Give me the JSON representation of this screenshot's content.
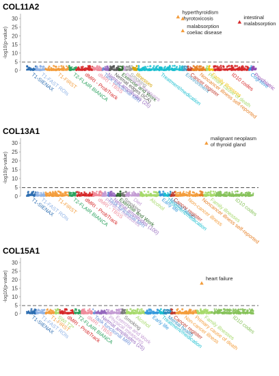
{
  "chart_data": [
    {
      "type": "scatter",
      "title": "COL11A2",
      "ylabel": "-log10(p-value)",
      "ylim": [
        0,
        32
      ],
      "yticks": [
        0,
        5,
        10,
        15,
        20,
        25,
        30
      ],
      "threshold": 4.8,
      "categories": [
        {
          "label": "T1-SIENAX",
          "color": "#2b6cb0",
          "span": [
            0.02,
            0.06
          ]
        },
        {
          "label": "T1-FAST ROIs",
          "color": "#8fb3e6",
          "span": [
            0.06,
            0.1
          ]
        },
        {
          "label": "T1-FIRST",
          "color": "#f39c3b",
          "span": [
            0.1,
            0.2
          ]
        },
        {
          "label": "T2-FLAIR BIANCA",
          "color": "#2ca25f",
          "span": [
            0.2,
            0.23
          ]
        },
        {
          "label": "dMRI - ProbTrack",
          "color": "#d62728",
          "span": [
            0.23,
            0.3
          ]
        },
        {
          "label": "dMRI - TBSS",
          "color": "#ef8a9a",
          "span": [
            0.3,
            0.34
          ]
        },
        {
          "label": "Task functional MRI",
          "color": "#6a8dd6",
          "span": [
            0.34,
            0.35
          ]
        },
        {
          "label": "Netmat amplitudes (25)",
          "color": "#9467bd",
          "span": [
            0.35,
            0.37
          ]
        },
        {
          "label": "Netmat edges (ICA)",
          "color": "#555555",
          "span": [
            0.37,
            0.41
          ]
        },
        {
          "label": "Exercise and Work",
          "color": "#2d6a2d",
          "span": [
            0.41,
            0.43
          ]
        },
        {
          "label": "Physical measures",
          "color": "#c39bd3",
          "span": [
            0.43,
            0.44
          ]
        },
        {
          "label": "Smoking",
          "color": "#999999",
          "span": [
            0.44,
            0.47
          ]
        },
        {
          "label": "Illnesses",
          "color": "#d4a300",
          "span": [
            0.47,
            0.49
          ]
        },
        {
          "label": "Treatment/medication",
          "color": "#17becf",
          "span": [
            0.49,
            0.68
          ]
        },
        {
          "label": "Environment",
          "color": "#4aa0c8",
          "span": [
            0.68,
            0.7
          ]
        },
        {
          "label": "Cancer register",
          "color": "#c0392b",
          "span": [
            0.7,
            0.72
          ]
        },
        {
          "label": "Noncancer illness self-reported",
          "color": "#e67e22",
          "span": [
            0.72,
            0.78
          ]
        },
        {
          "label": "Primary cause of death",
          "color": "#a6d96a",
          "span": [
            0.78,
            0.79
          ]
        },
        {
          "label": "Family illnesses",
          "color": "#f1c40f",
          "span": [
            0.79,
            0.81
          ]
        },
        {
          "label": "ID10 codes",
          "color": "#d62728",
          "span": [
            0.81,
            0.96
          ]
        },
        {
          "label": "Cognitive",
          "color": "#3498db",
          "span": [
            0.96,
            0.97
          ]
        },
        {
          "label": "Psychiatric",
          "color": "#8e44ad",
          "span": [
            0.97,
            0.99
          ]
        }
      ],
      "highlights": [
        {
          "x": 0.66,
          "y": 31,
          "color": "#f39c3b",
          "label": "hyperthyroidism\nthyrotoxicosis"
        },
        {
          "x": 0.68,
          "y": 30,
          "color": "#f39c3b",
          "label": ""
        },
        {
          "x": 0.68,
          "y": 23,
          "color": "#f39c3b",
          "label": "malabsorption\ncoeliac disease"
        },
        {
          "x": 0.92,
          "y": 28,
          "color": "#d62728",
          "label": "intestinal\nmalabsorption"
        }
      ]
    },
    {
      "type": "scatter",
      "title": "COL13A1",
      "ylabel": "-log10(p-value)",
      "ylim": [
        0,
        32
      ],
      "yticks": [
        0,
        5,
        10,
        15,
        20,
        25,
        30
      ],
      "threshold": 4.8,
      "categories": [
        {
          "label": "T1-SIENAX",
          "color": "#2b6cb0",
          "span": [
            0.02,
            0.06
          ]
        },
        {
          "label": "T1-FAST ROIs",
          "color": "#8fb3e6",
          "span": [
            0.06,
            0.1
          ]
        },
        {
          "label": "T1-FIRST",
          "color": "#f39c3b",
          "span": [
            0.1,
            0.2
          ]
        },
        {
          "label": "T2-FLAIR BIANCA",
          "color": "#2ca25f",
          "span": [
            0.2,
            0.23
          ]
        },
        {
          "label": "dMRI - ProbTrack",
          "color": "#d62728",
          "span": [
            0.23,
            0.3
          ]
        },
        {
          "label": "dMRI - TBSS",
          "color": "#ef8a9a",
          "span": [
            0.3,
            0.34
          ]
        },
        {
          "label": "Physical measures",
          "color": "#c39bd3",
          "span": [
            0.34,
            0.36
          ]
        },
        {
          "label": "Task functional MRI",
          "color": "#6a8dd6",
          "span": [
            0.36,
            0.37
          ]
        },
        {
          "label": "Netmat amplitudes (100)",
          "color": "#9467bd",
          "span": [
            0.37,
            0.4
          ]
        },
        {
          "label": "Exercise and Work",
          "color": "#2d6a2d",
          "span": [
            0.4,
            0.42
          ]
        },
        {
          "label": "Smoking",
          "color": "#777777",
          "span": [
            0.42,
            0.44
          ]
        },
        {
          "label": "Diet",
          "color": "#c39bd3",
          "span": [
            0.44,
            0.5
          ]
        },
        {
          "label": "Alcohol",
          "color": "#a6d96a",
          "span": [
            0.5,
            0.58
          ]
        },
        {
          "label": "Early life",
          "color": "#3498db",
          "span": [
            0.58,
            0.6
          ]
        },
        {
          "label": "Treatment/medication",
          "color": "#17becf",
          "span": [
            0.6,
            0.62
          ]
        },
        {
          "label": "Mental health",
          "color": "#2b8cbe",
          "span": [
            0.62,
            0.63
          ]
        },
        {
          "label": "Cancer register",
          "color": "#c0392b",
          "span": [
            0.63,
            0.65
          ]
        },
        {
          "label": "Non-cancer illness",
          "color": "#f39c3b",
          "span": [
            0.65,
            0.75
          ]
        },
        {
          "label": "Noncancer illness self-reported",
          "color": "#e67e22",
          "span": [
            0.75,
            0.77
          ]
        },
        {
          "label": "Family illnesses",
          "color": "#a6d96a",
          "span": [
            0.77,
            0.82
          ]
        },
        {
          "label": "ID10 codes",
          "color": "#86c25a",
          "span": [
            0.82,
            0.98
          ]
        }
      ],
      "highlights": [
        {
          "x": 0.78,
          "y": 30,
          "color": "#f39c3b",
          "label": "malignant neoplasm\nof thyroid gland"
        }
      ]
    },
    {
      "type": "scatter",
      "title": "COL15A1",
      "ylabel": "-log10(p-value)",
      "ylim": [
        0,
        32
      ],
      "yticks": [
        0,
        5,
        10,
        15,
        20,
        25,
        30
      ],
      "threshold": 4.8,
      "categories": [
        {
          "label": "T1-SIENAX",
          "color": "#2b6cb0",
          "span": [
            0.02,
            0.06
          ]
        },
        {
          "label": "T1-FAST ROIs",
          "color": "#8fb3e6",
          "span": [
            0.06,
            0.1
          ]
        },
        {
          "label": "T1-FIRST",
          "color": "#f39c3b",
          "span": [
            0.1,
            0.14
          ]
        },
        {
          "label": "SWI T2*",
          "color": "#a6d96a",
          "span": [
            0.14,
            0.16
          ]
        },
        {
          "label": "dMRI - ProbTrack",
          "color": "#d62728",
          "span": [
            0.16,
            0.22
          ]
        },
        {
          "label": "T2-FLAIR BIANCA",
          "color": "#2ca25f",
          "span": [
            0.22,
            0.25
          ]
        },
        {
          "label": "dMRI - TBSS",
          "color": "#ef8a9a",
          "span": [
            0.25,
            0.3
          ]
        },
        {
          "label": "Task functional MRI",
          "color": "#6a8dd6",
          "span": [
            0.3,
            0.31
          ]
        },
        {
          "label": "Netmat amplitudes (25)",
          "color": "#9467bd",
          "span": [
            0.31,
            0.36
          ]
        },
        {
          "label": "Physical measures",
          "color": "#c39bd3",
          "span": [
            0.36,
            0.37
          ]
        },
        {
          "label": "Exercise and Work",
          "color": "#c39bd3",
          "span": [
            0.37,
            0.42
          ]
        },
        {
          "label": "Smoking",
          "color": "#777777",
          "span": [
            0.42,
            0.44
          ]
        },
        {
          "label": "Alcohol",
          "color": "#a6d96a",
          "span": [
            0.44,
            0.52
          ]
        },
        {
          "label": "Early life",
          "color": "#3498db",
          "span": [
            0.52,
            0.58
          ]
        },
        {
          "label": "Treatment/medication",
          "color": "#17becf",
          "span": [
            0.58,
            0.6
          ]
        },
        {
          "label": "Mental health",
          "color": "#2b8cbe",
          "span": [
            0.6,
            0.63
          ]
        },
        {
          "label": "Cancer register",
          "color": "#c0392b",
          "span": [
            0.63,
            0.65
          ]
        },
        {
          "label": "Non-cancer illness",
          "color": "#f39c3b",
          "span": [
            0.65,
            0.72
          ]
        },
        {
          "label": "Primary cause of death",
          "color": "#f39c3b",
          "span": [
            0.72,
            0.74
          ]
        },
        {
          "label": "Family illnesses",
          "color": "#a6d96a",
          "span": [
            0.74,
            0.8
          ]
        },
        {
          "label": "ID10 codes",
          "color": "#86c25a",
          "span": [
            0.8,
            0.98
          ]
        }
      ],
      "highlights": [
        {
          "x": 0.76,
          "y": 18,
          "color": "#f39c3b",
          "label": "heart failure"
        }
      ]
    }
  ]
}
